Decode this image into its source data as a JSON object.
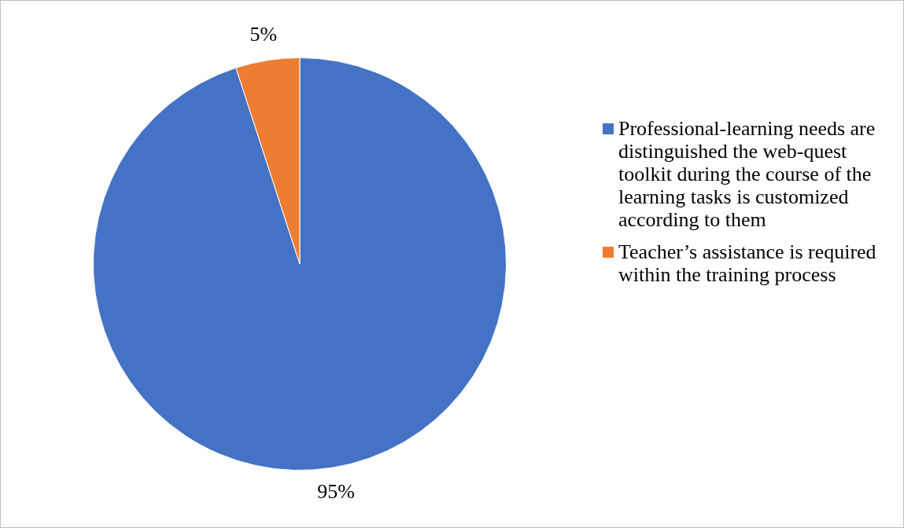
{
  "chart_data": {
    "type": "pie",
    "categories": [
      "Professional-learning needs are distinguished the web-quest toolkit during the course of the learning tasks is customized according to them",
      "Teacher’s assistance is required within the training process"
    ],
    "values": [
      95,
      5
    ],
    "colors": [
      "#4472c4",
      "#ed7d31"
    ],
    "value_labels": [
      "95%",
      "5%"
    ],
    "legend": "right"
  }
}
